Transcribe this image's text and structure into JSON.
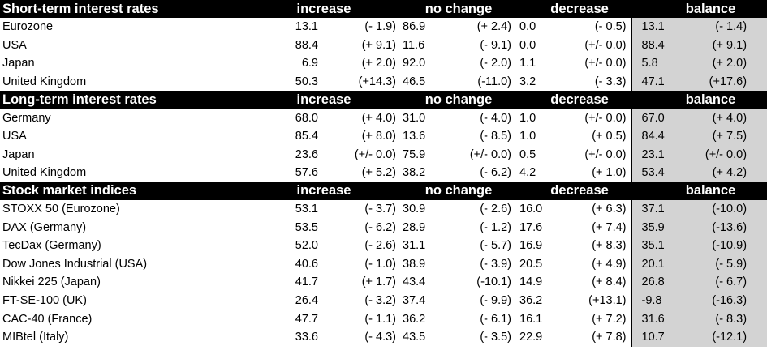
{
  "chart_data": {
    "type": "table",
    "columns": [
      "increase",
      "no change",
      "decrease",
      "balance"
    ],
    "sections": [
      {
        "title": "Short-term interest rates",
        "rows": [
          {
            "label": "Eurozone",
            "increase": "13.1",
            "increase_chg": "(- 1.9)",
            "no_change": "86.9",
            "no_change_chg": "(+ 2.4)",
            "decrease": "0.0",
            "decrease_chg": "(- 0.5)",
            "balance": "13.1",
            "balance_chg": "(- 1.4)"
          },
          {
            "label": "USA",
            "increase": "88.4",
            "increase_chg": "(+ 9.1)",
            "no_change": "11.6",
            "no_change_chg": "(- 9.1)",
            "decrease": "0.0",
            "decrease_chg": "(+/- 0.0)",
            "balance": "88.4",
            "balance_chg": "(+ 9.1)"
          },
          {
            "label": "Japan",
            "increase": "6.9",
            "increase_chg": "(+ 2.0)",
            "no_change": "92.0",
            "no_change_chg": "(- 2.0)",
            "decrease": "1.1",
            "decrease_chg": "(+/- 0.0)",
            "balance": "5.8",
            "balance_chg": "(+ 2.0)"
          },
          {
            "label": "United Kingdom",
            "increase": "50.3",
            "increase_chg": "(+14.3)",
            "no_change": "46.5",
            "no_change_chg": "(-11.0)",
            "decrease": "3.2",
            "decrease_chg": "(- 3.3)",
            "balance": "47.1",
            "balance_chg": "(+17.6)"
          }
        ]
      },
      {
        "title": "Long-term interest rates",
        "rows": [
          {
            "label": "Germany",
            "increase": "68.0",
            "increase_chg": "(+ 4.0)",
            "no_change": "31.0",
            "no_change_chg": "(- 4.0)",
            "decrease": "1.0",
            "decrease_chg": "(+/- 0.0)",
            "balance": "67.0",
            "balance_chg": "(+ 4.0)"
          },
          {
            "label": "USA",
            "increase": "85.4",
            "increase_chg": "(+ 8.0)",
            "no_change": "13.6",
            "no_change_chg": "(- 8.5)",
            "decrease": "1.0",
            "decrease_chg": "(+ 0.5)",
            "balance": "84.4",
            "balance_chg": "(+ 7.5)"
          },
          {
            "label": "Japan",
            "increase": "23.6",
            "increase_chg": "(+/- 0.0)",
            "no_change": "75.9",
            "no_change_chg": "(+/- 0.0)",
            "decrease": "0.5",
            "decrease_chg": "(+/- 0.0)",
            "balance": "23.1",
            "balance_chg": "(+/- 0.0)"
          },
          {
            "label": "United Kingdom",
            "increase": "57.6",
            "increase_chg": "(+ 5.2)",
            "no_change": "38.2",
            "no_change_chg": "(- 6.2)",
            "decrease": "4.2",
            "decrease_chg": "(+ 1.0)",
            "balance": "53.4",
            "balance_chg": "(+ 4.2)"
          }
        ]
      },
      {
        "title": "Stock market indices",
        "rows": [
          {
            "label": "STOXX 50 (Eurozone)",
            "increase": "53.1",
            "increase_chg": "(- 3.7)",
            "no_change": "30.9",
            "no_change_chg": "(- 2.6)",
            "decrease": "16.0",
            "decrease_chg": "(+ 6.3)",
            "balance": "37.1",
            "balance_chg": "(-10.0)"
          },
          {
            "label": "DAX (Germany)",
            "increase": "53.5",
            "increase_chg": "(- 6.2)",
            "no_change": "28.9",
            "no_change_chg": "(- 1.2)",
            "decrease": "17.6",
            "decrease_chg": "(+ 7.4)",
            "balance": "35.9",
            "balance_chg": "(-13.6)"
          },
          {
            "label": "TecDax (Germany)",
            "increase": "52.0",
            "increase_chg": "(- 2.6)",
            "no_change": "31.1",
            "no_change_chg": "(- 5.7)",
            "decrease": "16.9",
            "decrease_chg": "(+ 8.3)",
            "balance": "35.1",
            "balance_chg": "(-10.9)"
          },
          {
            "label": "Dow Jones Industrial (USA)",
            "increase": "40.6",
            "increase_chg": "(- 1.0)",
            "no_change": "38.9",
            "no_change_chg": "(- 3.9)",
            "decrease": "20.5",
            "decrease_chg": "(+ 4.9)",
            "balance": "20.1",
            "balance_chg": "(- 5.9)"
          },
          {
            "label": "Nikkei 225 (Japan)",
            "increase": "41.7",
            "increase_chg": "(+ 1.7)",
            "no_change": "43.4",
            "no_change_chg": "(-10.1)",
            "decrease": "14.9",
            "decrease_chg": "(+ 8.4)",
            "balance": "26.8",
            "balance_chg": "(- 6.7)"
          },
          {
            "label": "FT-SE-100 (UK)",
            "increase": "26.4",
            "increase_chg": "(- 3.2)",
            "no_change": "37.4",
            "no_change_chg": "(- 9.9)",
            "decrease": "36.2",
            "decrease_chg": "(+13.1)",
            "balance": "-9.8",
            "balance_chg": "(-16.3)"
          },
          {
            "label": "CAC-40 (France)",
            "increase": "47.7",
            "increase_chg": "(- 1.1)",
            "no_change": "36.2",
            "no_change_chg": "(- 6.1)",
            "decrease": "16.1",
            "decrease_chg": "(+ 7.2)",
            "balance": "31.6",
            "balance_chg": "(- 8.3)"
          },
          {
            "label": "MIBtel (Italy)",
            "increase": "33.6",
            "increase_chg": "(- 4.3)",
            "no_change": "43.5",
            "no_change_chg": "(- 3.5)",
            "decrease": "22.9",
            "decrease_chg": "(+ 7.8)",
            "balance": "10.7",
            "balance_chg": "(-12.1)"
          }
        ]
      }
    ]
  }
}
